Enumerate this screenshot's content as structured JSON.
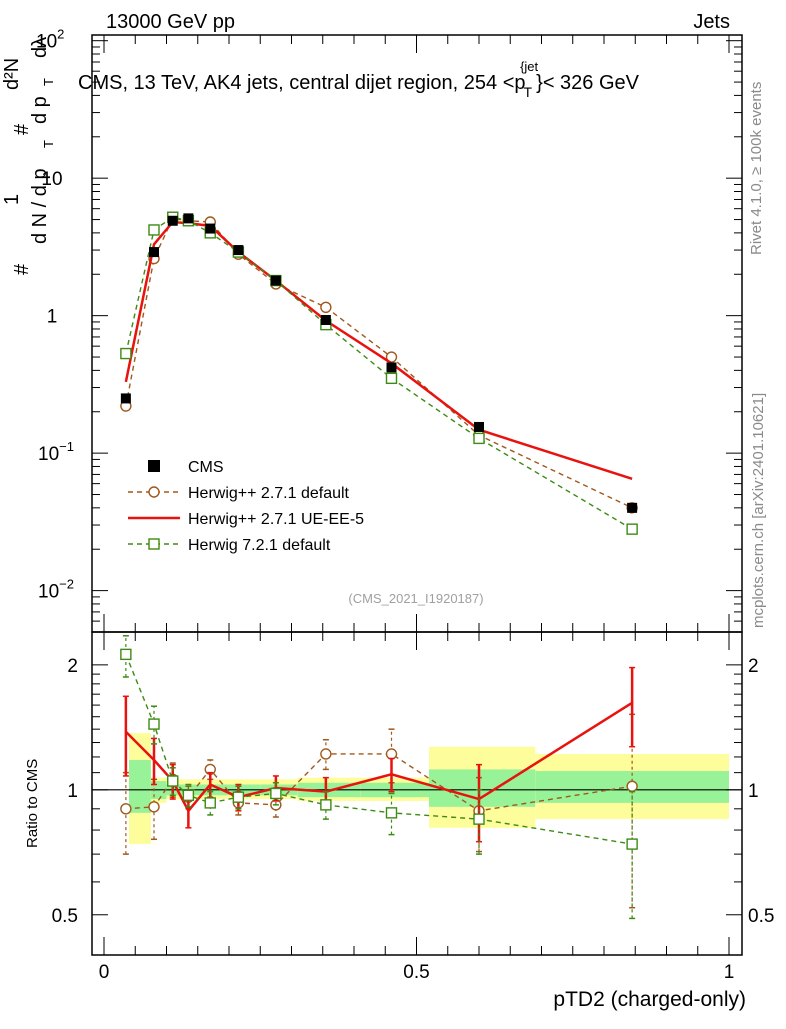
{
  "header": {
    "left_label": "13000 GeV pp",
    "right_label": "Jets"
  },
  "plot_title": "CMS, 13 TeV, AK4 jets, central dijet region, 254 <p_T^{jet}< 326 GeV",
  "title_parts": {
    "lead": "CMS, 13 TeV, AK4 jets, central dijet region, 254 <p",
    "sub": "T",
    "sup": "{jet",
    "tail": "}< 326 GeV"
  },
  "y_axis_label": "1/N dN/dp_T dλ d^2N / dp_T dλ",
  "y_label_parts": {
    "hash": "#",
    "one": "1",
    "dn_dpt": "d N / d p",
    "t_sub": "T",
    "d2n": "d²N",
    "dpt": "d p",
    "dlambda": "dλ"
  },
  "side_texts": {
    "rivet": "Rivet 4.1.0, ≥ 100k events",
    "mcplots": "mcplots.cern.ch [arXiv:2401.10621]"
  },
  "analysis_tag": "(CMS_2021_I1920187)",
  "ratio_axis_label": "Ratio to CMS",
  "x_axis_label": "pTD2 (charged-only)",
  "colors": {
    "data": "#000000",
    "herwig_pp_default": "#a0581c",
    "herwig_pp_ueee5": "#e8120e",
    "herwig7_default": "#3d8a14",
    "band_inner": "#98f398",
    "band_outer": "#fdfd9b"
  },
  "chart_data": {
    "type": "line",
    "title": "CMS, 13 TeV, AK4 jets, central dijet region, 254 < p_T^jet < 326 GeV",
    "xlabel": "pTD2 (charged-only)",
    "ylabel": "1/N dN/dp_T dλ",
    "xlim": [
      0,
      1
    ],
    "ylim_main": [
      0.005,
      110
    ],
    "yscale_main": "log",
    "ylim_ratio": [
      0.4,
      2.4
    ],
    "yscale_ratio": "log",
    "x_ticks": [
      {
        "v": 0,
        "label": "0"
      },
      {
        "v": 0.5,
        "label": "0.5"
      },
      {
        "v": 1,
        "label": "1"
      }
    ],
    "y_ticks_main": [
      {
        "v": 0.01,
        "base": "10",
        "exp": "−2"
      },
      {
        "v": 0.1,
        "base": "10",
        "exp": "−1"
      },
      {
        "v": 1,
        "base": "1",
        "exp": ""
      },
      {
        "v": 10,
        "base": "10",
        "exp": ""
      },
      {
        "v": 100,
        "base": "10",
        "exp": "2"
      }
    ],
    "y_ticks_ratio": [
      {
        "v": 0.5,
        "label": "0.5"
      },
      {
        "v": 1,
        "label": "1"
      },
      {
        "v": 2,
        "label": "2"
      }
    ],
    "bin_edges": [
      0.05,
      0.082,
      0.105,
      0.12,
      0.155,
      0.19,
      0.24,
      0.3,
      0.41,
      0.52,
      0.69,
      1.0
    ],
    "bin_centers": [
      0.035,
      0.08,
      0.11,
      0.135,
      0.17,
      0.215,
      0.275,
      0.355,
      0.46,
      0.6,
      0.845
    ],
    "ratio_band_edges": [
      0.04,
      0.075,
      0.1,
      0.13,
      0.16,
      0.2,
      0.25,
      0.31,
      0.41,
      0.52,
      0.69,
      1.0
    ],
    "ratio_band_inner": [
      [
        0.88,
        1.18
      ],
      [
        0.95,
        1.05
      ],
      [
        0.97,
        1.03
      ],
      [
        0.97,
        1.03
      ],
      [
        0.97,
        1.03
      ],
      [
        0.97,
        1.03
      ],
      [
        0.97,
        1.03
      ],
      [
        0.96,
        1.04
      ],
      [
        0.96,
        1.04
      ],
      [
        0.91,
        1.12
      ],
      [
        0.93,
        1.11
      ]
    ],
    "ratio_band_outer": [
      [
        0.74,
        1.37
      ],
      [
        0.93,
        1.07
      ],
      [
        0.95,
        1.06
      ],
      [
        0.95,
        1.06
      ],
      [
        0.95,
        1.06
      ],
      [
        0.95,
        1.06
      ],
      [
        0.95,
        1.06
      ],
      [
        0.94,
        1.07
      ],
      [
        0.94,
        1.07
      ],
      [
        0.81,
        1.27
      ],
      [
        0.85,
        1.22
      ]
    ],
    "series": [
      {
        "name": "CMS",
        "key": "data",
        "style": "points",
        "values": [
          0.25,
          2.9,
          4.9,
          5.1,
          4.3,
          3.0,
          1.8,
          0.93,
          0.42,
          0.155,
          0.04
        ],
        "ratio": [
          1,
          1,
          1,
          1,
          1,
          1,
          1,
          1,
          1,
          1,
          1
        ]
      },
      {
        "name": "Herwig++ 2.7.1 default",
        "key": "herwig_pp_default",
        "style": "dashed-circle",
        "values": [
          0.22,
          2.6,
          5.1,
          4.9,
          4.8,
          2.8,
          1.7,
          1.15,
          0.5,
          0.135,
          0.04
        ],
        "ratio": [
          0.9,
          0.91,
          1.06,
          0.96,
          1.12,
          0.93,
          0.92,
          1.22,
          1.22,
          0.89,
          1.02
        ],
        "ratio_err": [
          0.2,
          0.15,
          0.1,
          0.06,
          0.06,
          0.06,
          0.06,
          0.1,
          0.18,
          0.18,
          0.5
        ]
      },
      {
        "name": "Herwig++ 2.7.1 UE-EE-5",
        "key": "herwig_pp_ueee5",
        "style": "solid",
        "values": [
          0.33,
          3.3,
          4.8,
          4.7,
          4.5,
          2.9,
          1.8,
          0.92,
          0.45,
          0.148,
          0.065
        ],
        "ratio": [
          1.38,
          1.18,
          1.05,
          0.89,
          1.03,
          0.96,
          1.01,
          0.99,
          1.09,
          0.95,
          1.62
        ],
        "ratio_err": [
          0.3,
          0.15,
          0.1,
          0.08,
          0.07,
          0.07,
          0.07,
          0.08,
          0.1,
          0.2,
          0.35
        ]
      },
      {
        "name": "Herwig 7.2.1 default",
        "key": "herwig7_default",
        "style": "dashed-square",
        "values": [
          0.53,
          4.2,
          5.2,
          4.9,
          4.0,
          2.9,
          1.8,
          0.86,
          0.35,
          0.128,
          0.028
        ],
        "ratio": [
          2.12,
          1.44,
          1.05,
          0.97,
          0.93,
          0.96,
          0.98,
          0.92,
          0.88,
          0.85,
          0.74
        ],
        "ratio_err": [
          0.25,
          0.15,
          0.08,
          0.06,
          0.06,
          0.06,
          0.06,
          0.07,
          0.1,
          0.15,
          0.25
        ]
      }
    ],
    "legend": [
      {
        "label": "CMS",
        "key": "data"
      },
      {
        "label": "Herwig++ 2.7.1 default",
        "key": "herwig_pp_default"
      },
      {
        "label": "Herwig++ 2.7.1 UE-EE-5",
        "key": "herwig_pp_ueee5"
      },
      {
        "label": "Herwig 7.2.1 default",
        "key": "herwig7_default"
      }
    ],
    "legend_position": "bottom-left"
  }
}
